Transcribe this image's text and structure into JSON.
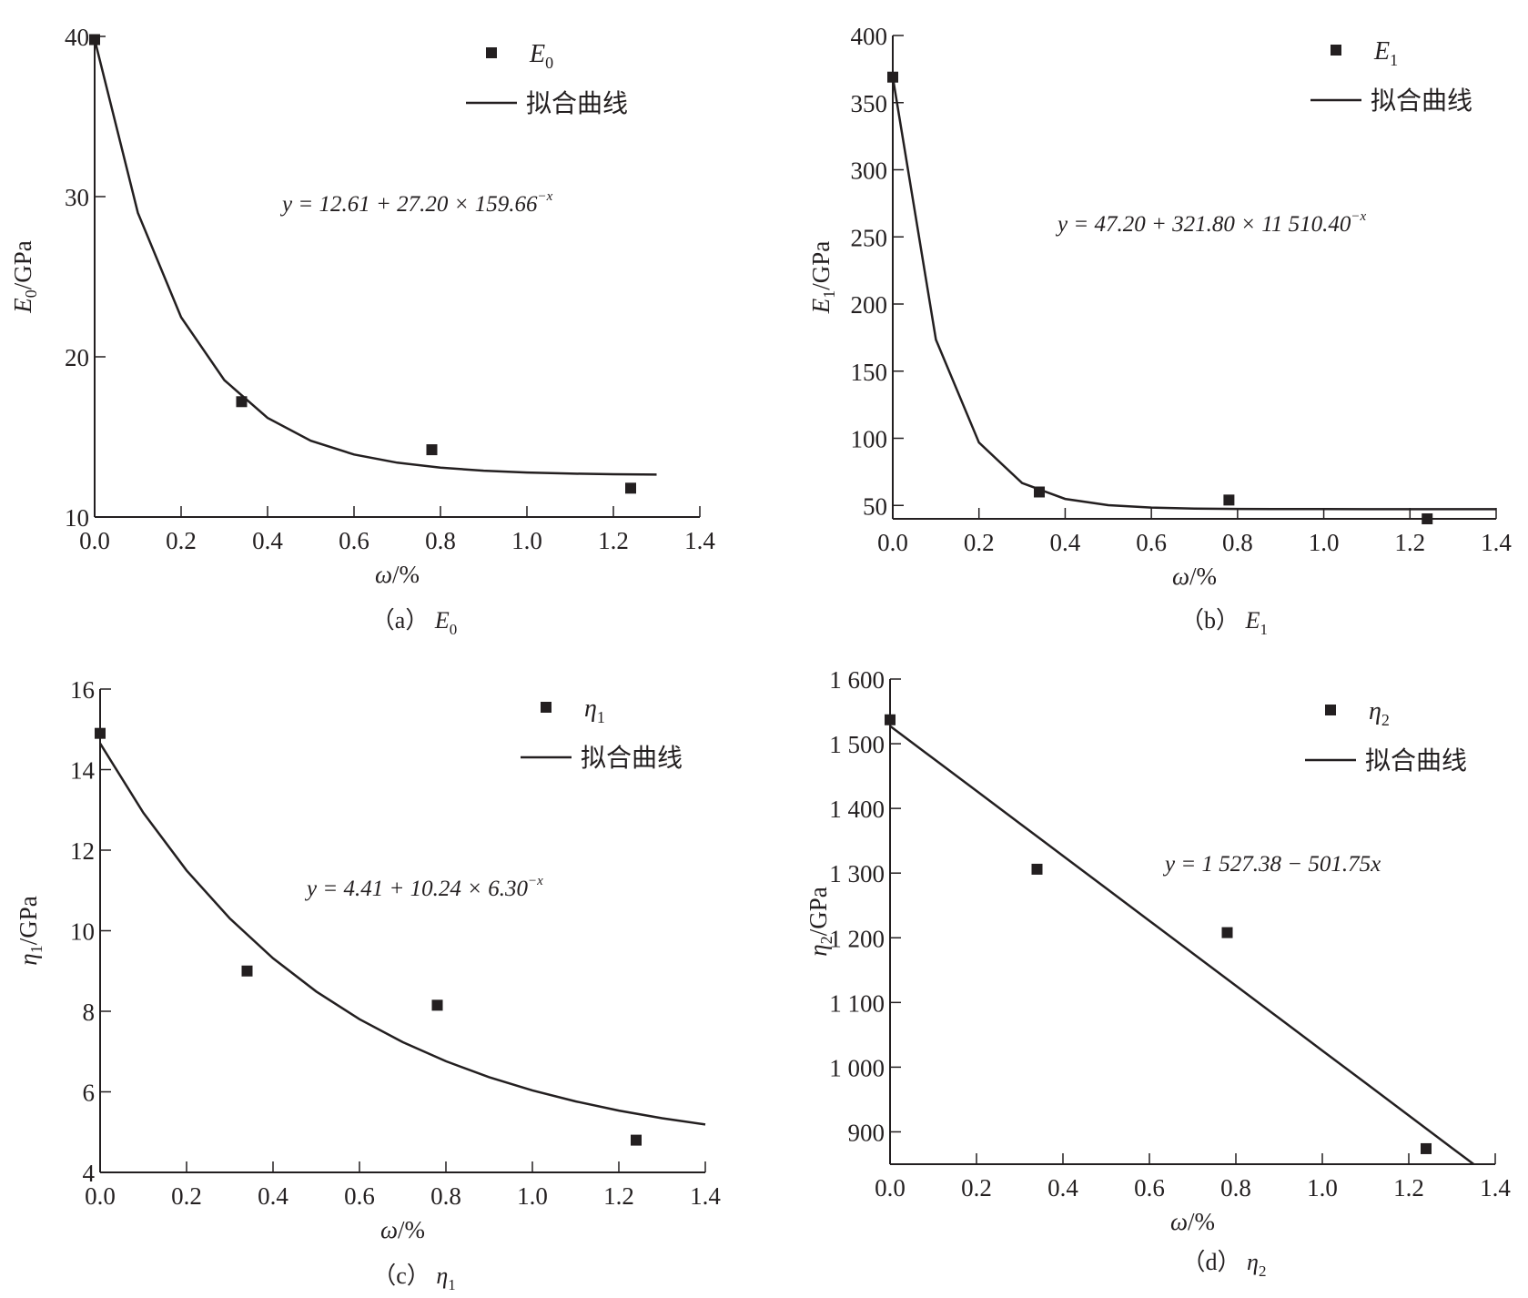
{
  "chart_data": [
    {
      "type": "scatter",
      "id": "a",
      "caption": {
        "prefix": "（a）",
        "sym": "E",
        "sub": "0"
      },
      "xlabel": {
        "sym": "ω",
        "rest": "/%"
      },
      "ylabel": {
        "sym": "E",
        "sub": "0",
        "rest": "/GPa"
      },
      "xlim": [
        0,
        1.4
      ],
      "ylim": [
        10,
        40
      ],
      "xticks": [
        0,
        0.2,
        0.4,
        0.6,
        0.8,
        1.0,
        1.2,
        1.4
      ],
      "xtick_labels": [
        "0.0",
        "0.2",
        "0.4",
        "0.6",
        "0.8",
        "1.0",
        "1.2",
        "1.4"
      ],
      "yticks": [
        10,
        20,
        30,
        40
      ],
      "ytick_labels": [
        "10",
        "20",
        "30",
        "40"
      ],
      "legend": {
        "marker_sym": "E",
        "marker_sub": "0",
        "line_label": "拟合曲线",
        "placement": "top-right"
      },
      "equation": {
        "text": "y = 12.61 + 27.20 × 159.66",
        "sup": "−x"
      },
      "fit": {
        "kind": "exp",
        "a": 12.61,
        "b": 27.2,
        "c": 159.66,
        "xmax": 1.3
      },
      "points": {
        "x": [
          0,
          0.34,
          0.78,
          1.24
        ],
        "y": [
          39.8,
          17.2,
          14.2,
          11.8
        ]
      }
    },
    {
      "type": "scatter",
      "id": "b",
      "caption": {
        "prefix": "（b）",
        "sym": "E",
        "sub": "1"
      },
      "xlabel": {
        "sym": "ω",
        "rest": "/%"
      },
      "ylabel": {
        "sym": "E",
        "sub": "1",
        "rest": "/GPa"
      },
      "xlim": [
        0,
        1.4
      ],
      "ylim": [
        40,
        400
      ],
      "xticks": [
        0,
        0.2,
        0.4,
        0.6,
        0.8,
        1.0,
        1.2,
        1.4
      ],
      "xtick_labels": [
        "0.0",
        "0.2",
        "0.4",
        "0.6",
        "0.8",
        "1.0",
        "1.2",
        "1.4"
      ],
      "yticks": [
        50,
        100,
        150,
        200,
        250,
        300,
        350,
        400
      ],
      "ytick_labels": [
        "50",
        "100",
        "150",
        "200",
        "250",
        "300",
        "350",
        "400"
      ],
      "legend": {
        "marker_sym": "E",
        "marker_sub": "1",
        "line_label": "拟合曲线",
        "placement": "top-right"
      },
      "equation": {
        "text": "y = 47.20 + 321.80 × 11 510.40",
        "sup": "−x"
      },
      "fit": {
        "kind": "exp",
        "a": 47.2,
        "b": 321.8,
        "c": 11510.4,
        "xmax": 1.4
      },
      "points": {
        "x": [
          0,
          0.34,
          0.78,
          1.24
        ],
        "y": [
          369,
          60,
          54,
          40
        ]
      }
    },
    {
      "type": "scatter",
      "id": "c",
      "caption": {
        "prefix": "（c）",
        "sym": "η",
        "sub": "1"
      },
      "xlabel": {
        "sym": "ω",
        "rest": "/%"
      },
      "ylabel": {
        "sym": "η",
        "sub": "1",
        "rest": "/GPa"
      },
      "xlim": [
        0,
        1.4
      ],
      "ylim": [
        4,
        16
      ],
      "xticks": [
        0,
        0.2,
        0.4,
        0.6,
        0.8,
        1.0,
        1.2,
        1.4
      ],
      "xtick_labels": [
        "0.0",
        "0.2",
        "0.4",
        "0.6",
        "0.8",
        "1.0",
        "1.2",
        "1.4"
      ],
      "yticks": [
        4,
        6,
        8,
        10,
        12,
        14,
        16
      ],
      "ytick_labels": [
        "4",
        "6",
        "8",
        "10",
        "12",
        "14",
        "16"
      ],
      "legend": {
        "marker_sym": "η",
        "marker_sub": "1",
        "line_label": "拟合曲线",
        "placement": "top-right"
      },
      "equation": {
        "text": "y = 4.41 + 10.24 × 6.30",
        "sup": "−x"
      },
      "fit": {
        "kind": "exp",
        "a": 4.41,
        "b": 10.24,
        "c": 6.3,
        "xmax": 1.4
      },
      "points": {
        "x": [
          0,
          0.34,
          0.78,
          1.24
        ],
        "y": [
          14.9,
          9.0,
          8.15,
          4.8
        ]
      }
    },
    {
      "type": "scatter",
      "id": "d",
      "caption": {
        "prefix": "（d）",
        "sym": "η",
        "sub": "2"
      },
      "xlabel": {
        "sym": "ω",
        "rest": "/%"
      },
      "ylabel": {
        "sym": "η",
        "sub": "2",
        "rest": "/GPa"
      },
      "xlim": [
        0,
        1.4
      ],
      "ylim": [
        850,
        1600
      ],
      "xticks": [
        0,
        0.2,
        0.4,
        0.6,
        0.8,
        1.0,
        1.2,
        1.4
      ],
      "xtick_labels": [
        "0.0",
        "0.2",
        "0.4",
        "0.6",
        "0.8",
        "1.0",
        "1.2",
        "1.4"
      ],
      "yticks": [
        900,
        1000,
        1100,
        1200,
        1300,
        1400,
        1500,
        1600
      ],
      "ytick_labels": [
        "900",
        "1 000",
        "1 100",
        "1 200",
        "1 300",
        "1 400",
        "1 500",
        "1 600"
      ],
      "legend": {
        "marker_sym": "η",
        "marker_sub": "2",
        "line_label": "拟合曲线",
        "placement": "top-right"
      },
      "equation": {
        "text": "y = 1 527.38 − 501.75x",
        "sup": ""
      },
      "fit": {
        "kind": "linear",
        "a": 1527.38,
        "b": -501.75,
        "xmax": 1.35
      },
      "points": {
        "x": [
          0,
          0.34,
          0.78,
          1.24
        ],
        "y": [
          1537,
          1306,
          1208,
          874
        ]
      }
    }
  ]
}
